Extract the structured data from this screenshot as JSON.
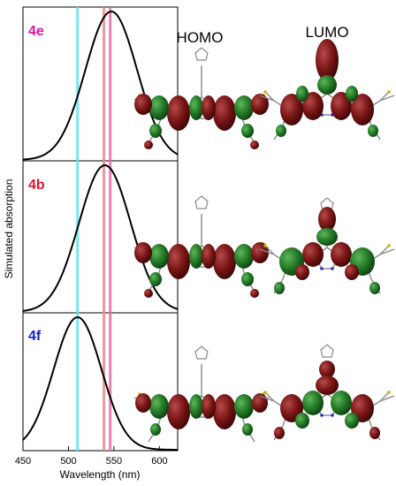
{
  "chart_data": {
    "type": "line",
    "xlabel": "Wavelength (nm)",
    "ylabel": "Simulated absorption",
    "xlim": [
      450,
      620
    ],
    "x_ticks": [
      "450",
      "500",
      "550",
      "600"
    ],
    "grid": false,
    "shared_x_axis": true,
    "reference_lines": [
      {
        "x": 510,
        "color": "#5fe3ef"
      },
      {
        "x": 539,
        "color": "#e88a8a"
      },
      {
        "x": 546,
        "color": "#e86aa8"
      }
    ],
    "panels": [
      {
        "label": "4e",
        "label_color": "#e0169a",
        "peak_nm": 547,
        "fwhm_nm": 67
      },
      {
        "label": "4b",
        "label_color": "#e0172b",
        "peak_nm": 540,
        "fwhm_nm": 67
      },
      {
        "label": "4f",
        "label_color": "#1520d0",
        "peak_nm": 510,
        "fwhm_nm": 62
      }
    ],
    "orbital_headers": [
      "HOMO",
      "LUMO"
    ]
  }
}
